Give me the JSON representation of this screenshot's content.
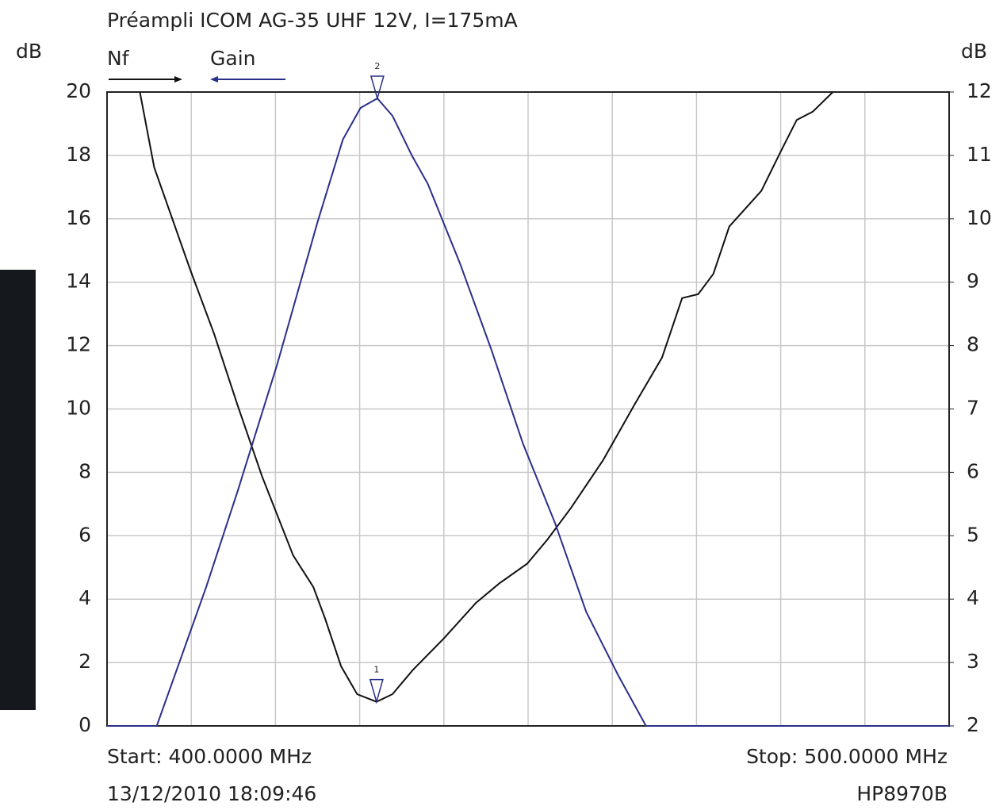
{
  "chart_data": {
    "type": "line",
    "title": "Préampli ICOM AG-35 UHF 12V, I=175mA",
    "ylabel": "dB",
    "y2label": "dB",
    "start_label": "Start: 400.0000 MHz",
    "stop_label": "Stop: 500.0000 MHz",
    "timestamp": "13/12/2010 18:09:46",
    "instrument": "HP8970B",
    "xlim": [
      400,
      500
    ],
    "ylim": [
      0,
      20
    ],
    "yticks": [
      0,
      2,
      4,
      6,
      8,
      10,
      12,
      14,
      16,
      18,
      20
    ],
    "y2lim": [
      2,
      12
    ],
    "y2ticks": [
      2,
      3,
      4,
      5,
      6,
      7,
      8,
      9,
      10,
      11,
      12
    ],
    "grid": true,
    "series": [
      {
        "name": "Nf",
        "color": "#111111",
        "axis": "y2",
        "x": [
          403.9,
          405.6,
          409.9,
          412.7,
          415.5,
          418.4,
          422.1,
          424.5,
          425.9,
          427.8,
          429.7,
          432.0,
          433.9,
          436.3,
          440.0,
          443.8,
          446.6,
          449.9,
          452.3,
          455.1,
          458.9,
          462.6,
          465.9,
          468.3,
          470.2,
          472.0,
          473.9,
          477.7,
          480.0,
          481.9,
          483.8,
          486.2
        ],
        "values": [
          12,
          10.81,
          9.19,
          8.19,
          7.06,
          5.94,
          4.69,
          4.19,
          3.69,
          2.94,
          2.5,
          2.38,
          2.5,
          2.88,
          3.38,
          3.94,
          4.25,
          4.56,
          4.94,
          5.44,
          6.19,
          7.06,
          7.81,
          8.75,
          8.81,
          9.13,
          9.88,
          10.44,
          11.06,
          11.56,
          11.69,
          12
        ]
      },
      {
        "name": "Gain",
        "color": "#2a2f8a",
        "axis": "y",
        "x": [
          400,
          405.9,
          411.8,
          415.5,
          420.2,
          425.0,
          428.0,
          430.1,
          432.1,
          433.9,
          436.2,
          438.1,
          441.9,
          445.6,
          449.4,
          453.2,
          456.9,
          460.7,
          464.0,
          500
        ],
        "values": [
          0,
          0,
          4.4,
          7.4,
          11.4,
          15.9,
          18.5,
          19.5,
          19.8,
          19.25,
          18,
          17.1,
          14.6,
          11.9,
          8.9,
          6.4,
          3.6,
          1.6,
          0,
          0
        ]
      }
    ],
    "markers": [
      {
        "label": "1",
        "x": 432.0,
        "value": 2.38,
        "axis": "y2"
      },
      {
        "label": "2",
        "x": 432.1,
        "value": 19.8,
        "axis": "y"
      }
    ]
  }
}
